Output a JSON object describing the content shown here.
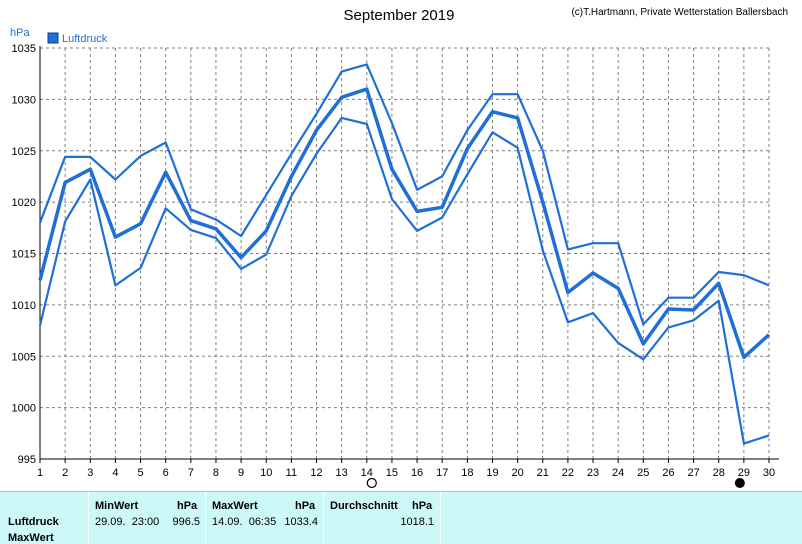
{
  "header": {
    "title": "September 2019",
    "copyright": "(c)T.Hartmann, Private Wetterstation Ballersbach"
  },
  "chart_data": {
    "type": "line",
    "ylabel": "hPa",
    "ylim": [
      995,
      1035
    ],
    "yticks": [
      995,
      1000,
      1005,
      1010,
      1015,
      1020,
      1025,
      1030,
      1035
    ],
    "xlim": [
      1,
      30
    ],
    "x": [
      1,
      2,
      3,
      4,
      5,
      6,
      7,
      8,
      9,
      10,
      11,
      12,
      13,
      14,
      15,
      16,
      17,
      18,
      19,
      20,
      21,
      22,
      23,
      24,
      25,
      26,
      27,
      28,
      29,
      30
    ],
    "legend": {
      "label": "Luftdruck",
      "placement": "top-left"
    },
    "grid": true,
    "series": [
      {
        "role": "max",
        "color": "#1f6fd6",
        "values": [
          1018.0,
          1024.4,
          1024.4,
          1022.2,
          1024.5,
          1025.8,
          1019.3,
          1018.3,
          1016.7,
          1020.7,
          1024.7,
          1028.6,
          1032.7,
          1033.4,
          1027.7,
          1021.2,
          1022.5,
          1027.0,
          1030.5,
          1030.5,
          1025.0,
          1015.4,
          1016.0,
          1016.0,
          1008.1,
          1010.7,
          1010.7,
          1013.2,
          1012.9,
          1011.9
        ]
      },
      {
        "role": "avg",
        "color": "#1f6fd6",
        "values": [
          1012.4,
          1021.9,
          1023.2,
          1016.6,
          1017.9,
          1022.9,
          1018.2,
          1017.4,
          1014.6,
          1017.2,
          1022.5,
          1027.0,
          1030.2,
          1031.0,
          1023.2,
          1019.1,
          1019.5,
          1025.2,
          1028.8,
          1028.2,
          1020.0,
          1011.2,
          1013.1,
          1011.6,
          1006.2,
          1009.6,
          1009.5,
          1012.1,
          1004.9,
          1007.1
        ]
      },
      {
        "role": "min",
        "color": "#1f6fd6",
        "values": [
          1008.0,
          1018.1,
          1022.2,
          1011.9,
          1013.6,
          1019.4,
          1017.3,
          1016.5,
          1013.5,
          1014.9,
          1020.6,
          1024.7,
          1028.2,
          1027.6,
          1020.3,
          1017.2,
          1018.5,
          1022.7,
          1026.8,
          1025.3,
          1015.3,
          1008.3,
          1009.2,
          1006.3,
          1004.7,
          1007.8,
          1008.5,
          1010.4,
          996.5,
          997.3
        ]
      }
    ],
    "markers": {
      "max_day": 14,
      "min_day": 29
    }
  },
  "stats": {
    "col_min_header": "MinWert",
    "col_max_header": "MaxWert",
    "col_avg_header": "Durchschnitt",
    "unit": "hPa",
    "row_label": "Luftdruck",
    "row_label2": "MaxWert",
    "min_time": "29.09.  23:00",
    "min_value": "996.5",
    "max_time": "14.09.  06:35",
    "max_value": "1033.4",
    "avg_value": "1018.1"
  }
}
